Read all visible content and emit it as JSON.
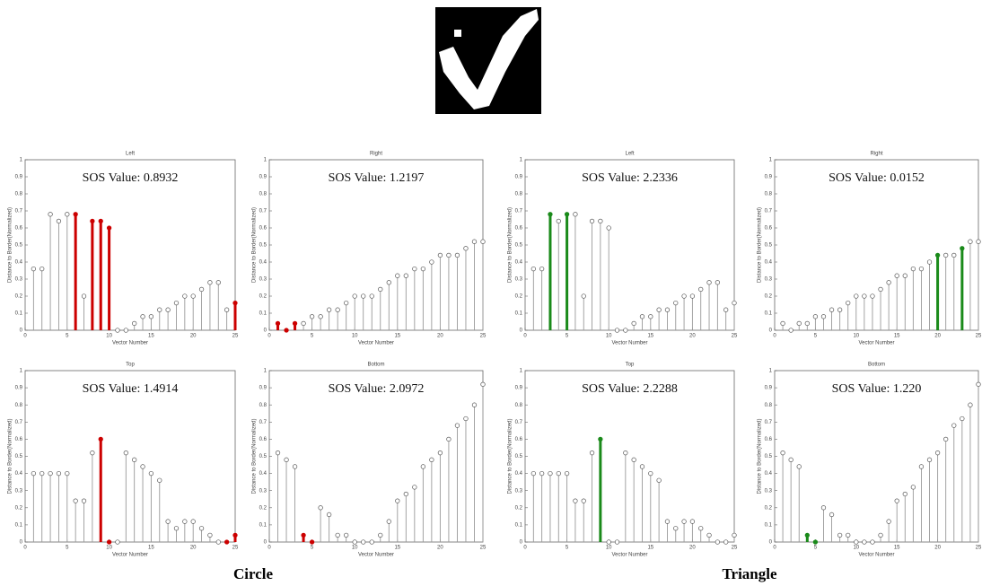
{
  "chart_data": [
    {
      "type": "stem",
      "title": "Left",
      "annotation": "SOS Value: 0.8932",
      "xlabel": "Vector Number",
      "ylabel": "Distance to Border(Normalized)",
      "x": [
        1,
        2,
        3,
        4,
        5,
        6,
        7,
        8,
        9,
        10,
        11,
        12,
        13,
        14,
        15,
        16,
        17,
        18,
        19,
        20,
        21,
        22,
        23,
        24,
        25
      ],
      "values": [
        0.36,
        0.36,
        0.68,
        0.64,
        0.68,
        0.68,
        0.2,
        0.64,
        0.64,
        0.6,
        0,
        0,
        0.04,
        0.08,
        0.08,
        0.12,
        0.12,
        0.16,
        0.2,
        0.2,
        0.24,
        0.28,
        0.28,
        0.12,
        0.16
      ],
      "colors": [
        "#999999",
        "#999999",
        "#999999",
        "#999999",
        "#999999",
        "#cc0000",
        "#999999",
        "#cc0000",
        "#cc0000",
        "#cc0000",
        "#999999",
        "#999999",
        "#999999",
        "#999999",
        "#999999",
        "#999999",
        "#999999",
        "#999999",
        "#999999",
        "#999999",
        "#999999",
        "#999999",
        "#999999",
        "#999999",
        "#cc0000"
      ],
      "xlim": [
        0,
        25
      ],
      "xticks": [
        0,
        5,
        10,
        15,
        20,
        25
      ],
      "ylim": [
        0,
        1
      ],
      "yticks": [
        0,
        0.1,
        0.2,
        0.3,
        0.4,
        0.5,
        0.6,
        0.7,
        0.8,
        0.9,
        1
      ]
    },
    {
      "type": "stem",
      "title": "Right",
      "annotation": "SOS Value: 1.2197",
      "xlabel": "Vector Number",
      "ylabel": "Distance to Border(Normalized)",
      "x": [
        1,
        2,
        3,
        4,
        5,
        6,
        7,
        8,
        9,
        10,
        11,
        12,
        13,
        14,
        15,
        16,
        17,
        18,
        19,
        20,
        21,
        22,
        23,
        24,
        25
      ],
      "values": [
        0.04,
        0,
        0.04,
        0.04,
        0.08,
        0.08,
        0.12,
        0.12,
        0.16,
        0.2,
        0.2,
        0.2,
        0.24,
        0.28,
        0.32,
        0.32,
        0.36,
        0.36,
        0.4,
        0.44,
        0.44,
        0.44,
        0.48,
        0.52,
        0.52
      ],
      "colors": [
        "#cc0000",
        "#cc0000",
        "#cc0000",
        "#999999",
        "#999999",
        "#999999",
        "#999999",
        "#999999",
        "#999999",
        "#999999",
        "#999999",
        "#999999",
        "#999999",
        "#999999",
        "#999999",
        "#999999",
        "#999999",
        "#999999",
        "#999999",
        "#999999",
        "#999999",
        "#999999",
        "#999999",
        "#999999",
        "#999999"
      ],
      "xlim": [
        0,
        25
      ],
      "xticks": [
        0,
        5,
        10,
        15,
        20,
        25
      ],
      "ylim": [
        0,
        1
      ],
      "yticks": [
        0,
        0.1,
        0.2,
        0.3,
        0.4,
        0.5,
        0.6,
        0.7,
        0.8,
        0.9,
        1
      ]
    },
    {
      "type": "stem",
      "title": "Left",
      "annotation": "SOS Value: 2.2336",
      "xlabel": "Vector Number",
      "ylabel": "Distance to Border(Normalized)",
      "x": [
        1,
        2,
        3,
        4,
        5,
        6,
        7,
        8,
        9,
        10,
        11,
        12,
        13,
        14,
        15,
        16,
        17,
        18,
        19,
        20,
        21,
        22,
        23,
        24,
        25
      ],
      "values": [
        0.36,
        0.36,
        0.68,
        0.64,
        0.68,
        0.68,
        0.2,
        0.64,
        0.64,
        0.6,
        0,
        0,
        0.04,
        0.08,
        0.08,
        0.12,
        0.12,
        0.16,
        0.2,
        0.2,
        0.24,
        0.28,
        0.28,
        0.12,
        0.16
      ],
      "colors": [
        "#999999",
        "#999999",
        "#1a8a1a",
        "#999999",
        "#1a8a1a",
        "#999999",
        "#999999",
        "#999999",
        "#999999",
        "#999999",
        "#999999",
        "#999999",
        "#999999",
        "#999999",
        "#999999",
        "#999999",
        "#999999",
        "#999999",
        "#999999",
        "#999999",
        "#999999",
        "#999999",
        "#999999",
        "#999999",
        "#999999"
      ],
      "xlim": [
        0,
        25
      ],
      "xticks": [
        0,
        5,
        10,
        15,
        20,
        25
      ],
      "ylim": [
        0,
        1
      ],
      "yticks": [
        0,
        0.1,
        0.2,
        0.3,
        0.4,
        0.5,
        0.6,
        0.7,
        0.8,
        0.9,
        1
      ]
    },
    {
      "type": "stem",
      "title": "Right",
      "annotation": "SOS Value: 0.0152",
      "xlabel": "Vector Number",
      "ylabel": "Distance to Border(Normalized)",
      "x": [
        1,
        2,
        3,
        4,
        5,
        6,
        7,
        8,
        9,
        10,
        11,
        12,
        13,
        14,
        15,
        16,
        17,
        18,
        19,
        20,
        21,
        22,
        23,
        24,
        25
      ],
      "values": [
        0.04,
        0,
        0.04,
        0.04,
        0.08,
        0.08,
        0.12,
        0.12,
        0.16,
        0.2,
        0.2,
        0.2,
        0.24,
        0.28,
        0.32,
        0.32,
        0.36,
        0.36,
        0.4,
        0.44,
        0.44,
        0.44,
        0.48,
        0.52,
        0.52
      ],
      "colors": [
        "#999999",
        "#999999",
        "#999999",
        "#999999",
        "#999999",
        "#999999",
        "#999999",
        "#999999",
        "#999999",
        "#999999",
        "#999999",
        "#999999",
        "#999999",
        "#999999",
        "#999999",
        "#999999",
        "#999999",
        "#999999",
        "#999999",
        "#1a8a1a",
        "#999999",
        "#999999",
        "#1a8a1a",
        "#999999",
        "#999999"
      ],
      "xlim": [
        0,
        25
      ],
      "xticks": [
        0,
        5,
        10,
        15,
        20,
        25
      ],
      "ylim": [
        0,
        1
      ],
      "yticks": [
        0,
        0.1,
        0.2,
        0.3,
        0.4,
        0.5,
        0.6,
        0.7,
        0.8,
        0.9,
        1
      ]
    },
    {
      "type": "stem",
      "title": "Top",
      "annotation": "SOS Value: 1.4914",
      "xlabel": "Vector Number",
      "ylabel": "Distance to Border(Normalized)",
      "x": [
        1,
        2,
        3,
        4,
        5,
        6,
        7,
        8,
        9,
        10,
        11,
        12,
        13,
        14,
        15,
        16,
        17,
        18,
        19,
        20,
        21,
        22,
        23,
        24,
        25
      ],
      "values": [
        0.4,
        0.4,
        0.4,
        0.4,
        0.4,
        0.24,
        0.24,
        0.52,
        0.6,
        0,
        0,
        0.52,
        0.48,
        0.44,
        0.4,
        0.36,
        0.12,
        0.08,
        0.12,
        0.12,
        0.08,
        0.04,
        0,
        0,
        0.04
      ],
      "colors": [
        "#999999",
        "#999999",
        "#999999",
        "#999999",
        "#999999",
        "#999999",
        "#999999",
        "#999999",
        "#cc0000",
        "#cc0000",
        "#999999",
        "#999999",
        "#999999",
        "#999999",
        "#999999",
        "#999999",
        "#999999",
        "#999999",
        "#999999",
        "#999999",
        "#999999",
        "#999999",
        "#999999",
        "#cc0000",
        "#cc0000"
      ],
      "xlim": [
        0,
        25
      ],
      "xticks": [
        0,
        5,
        10,
        15,
        20,
        25
      ],
      "ylim": [
        0,
        1
      ],
      "yticks": [
        0,
        0.1,
        0.2,
        0.3,
        0.4,
        0.5,
        0.6,
        0.7,
        0.8,
        0.9,
        1
      ]
    },
    {
      "type": "stem",
      "title": "Bottom",
      "annotation": "SOS Value: 2.0972",
      "xlabel": "Vector Number",
      "ylabel": "Distance to Border(Normalized)",
      "x": [
        1,
        2,
        3,
        4,
        5,
        6,
        7,
        8,
        9,
        10,
        11,
        12,
        13,
        14,
        15,
        16,
        17,
        18,
        19,
        20,
        21,
        22,
        23,
        24,
        25
      ],
      "values": [
        0.52,
        0.48,
        0.44,
        0.04,
        0,
        0.2,
        0.16,
        0.04,
        0.04,
        0,
        0,
        0,
        0.04,
        0.12,
        0.24,
        0.28,
        0.32,
        0.44,
        0.48,
        0.52,
        0.6,
        0.68,
        0.72,
        0.8,
        0.92
      ],
      "colors": [
        "#999999",
        "#999999",
        "#999999",
        "#cc0000",
        "#cc0000",
        "#999999",
        "#999999",
        "#999999",
        "#999999",
        "#999999",
        "#999999",
        "#999999",
        "#999999",
        "#999999",
        "#999999",
        "#999999",
        "#999999",
        "#999999",
        "#999999",
        "#999999",
        "#999999",
        "#999999",
        "#999999",
        "#999999",
        "#999999"
      ],
      "xlim": [
        0,
        25
      ],
      "xticks": [
        0,
        5,
        10,
        15,
        20,
        25
      ],
      "ylim": [
        0,
        1
      ],
      "yticks": [
        0,
        0.1,
        0.2,
        0.3,
        0.4,
        0.5,
        0.6,
        0.7,
        0.8,
        0.9,
        1
      ]
    },
    {
      "type": "stem",
      "title": "Top",
      "annotation": "SOS Value: 2.2288",
      "xlabel": "Vector Number",
      "ylabel": "Distance to Border(Normalized)",
      "x": [
        1,
        2,
        3,
        4,
        5,
        6,
        7,
        8,
        9,
        10,
        11,
        12,
        13,
        14,
        15,
        16,
        17,
        18,
        19,
        20,
        21,
        22,
        23,
        24,
        25
      ],
      "values": [
        0.4,
        0.4,
        0.4,
        0.4,
        0.4,
        0.24,
        0.24,
        0.52,
        0.6,
        0,
        0,
        0.52,
        0.48,
        0.44,
        0.4,
        0.36,
        0.12,
        0.08,
        0.12,
        0.12,
        0.08,
        0.04,
        0,
        0,
        0.04
      ],
      "colors": [
        "#999999",
        "#999999",
        "#999999",
        "#999999",
        "#999999",
        "#999999",
        "#999999",
        "#999999",
        "#1a8a1a",
        "#999999",
        "#999999",
        "#999999",
        "#999999",
        "#999999",
        "#999999",
        "#999999",
        "#999999",
        "#999999",
        "#999999",
        "#999999",
        "#999999",
        "#999999",
        "#999999",
        "#999999",
        "#999999"
      ],
      "xlim": [
        0,
        25
      ],
      "xticks": [
        0,
        5,
        10,
        15,
        20,
        25
      ],
      "ylim": [
        0,
        1
      ],
      "yticks": [
        0,
        0.1,
        0.2,
        0.3,
        0.4,
        0.5,
        0.6,
        0.7,
        0.8,
        0.9,
        1
      ]
    },
    {
      "type": "stem",
      "title": "Bottom",
      "annotation": "SOS Value: 1.220",
      "xlabel": "Vector Number",
      "ylabel": "Distance to Border(Normalized)",
      "x": [
        1,
        2,
        3,
        4,
        5,
        6,
        7,
        8,
        9,
        10,
        11,
        12,
        13,
        14,
        15,
        16,
        17,
        18,
        19,
        20,
        21,
        22,
        23,
        24,
        25
      ],
      "values": [
        0.52,
        0.48,
        0.44,
        0.04,
        0,
        0.2,
        0.16,
        0.04,
        0.04,
        0,
        0,
        0,
        0.04,
        0.12,
        0.24,
        0.28,
        0.32,
        0.44,
        0.48,
        0.52,
        0.6,
        0.68,
        0.72,
        0.8,
        0.92
      ],
      "colors": [
        "#999999",
        "#999999",
        "#999999",
        "#1a8a1a",
        "#1a8a1a",
        "#999999",
        "#999999",
        "#999999",
        "#999999",
        "#999999",
        "#999999",
        "#999999",
        "#999999",
        "#999999",
        "#999999",
        "#999999",
        "#999999",
        "#999999",
        "#999999",
        "#999999",
        "#999999",
        "#999999",
        "#999999",
        "#999999",
        "#999999"
      ],
      "xlim": [
        0,
        25
      ],
      "xticks": [
        0,
        5,
        10,
        15,
        20,
        25
      ],
      "ylim": [
        0,
        1
      ],
      "yticks": [
        0,
        0.1,
        0.2,
        0.3,
        0.4,
        0.5,
        0.6,
        0.7,
        0.8,
        0.9,
        1
      ]
    }
  ],
  "figure": {
    "captions": [
      "Circle",
      "Triangle"
    ]
  }
}
